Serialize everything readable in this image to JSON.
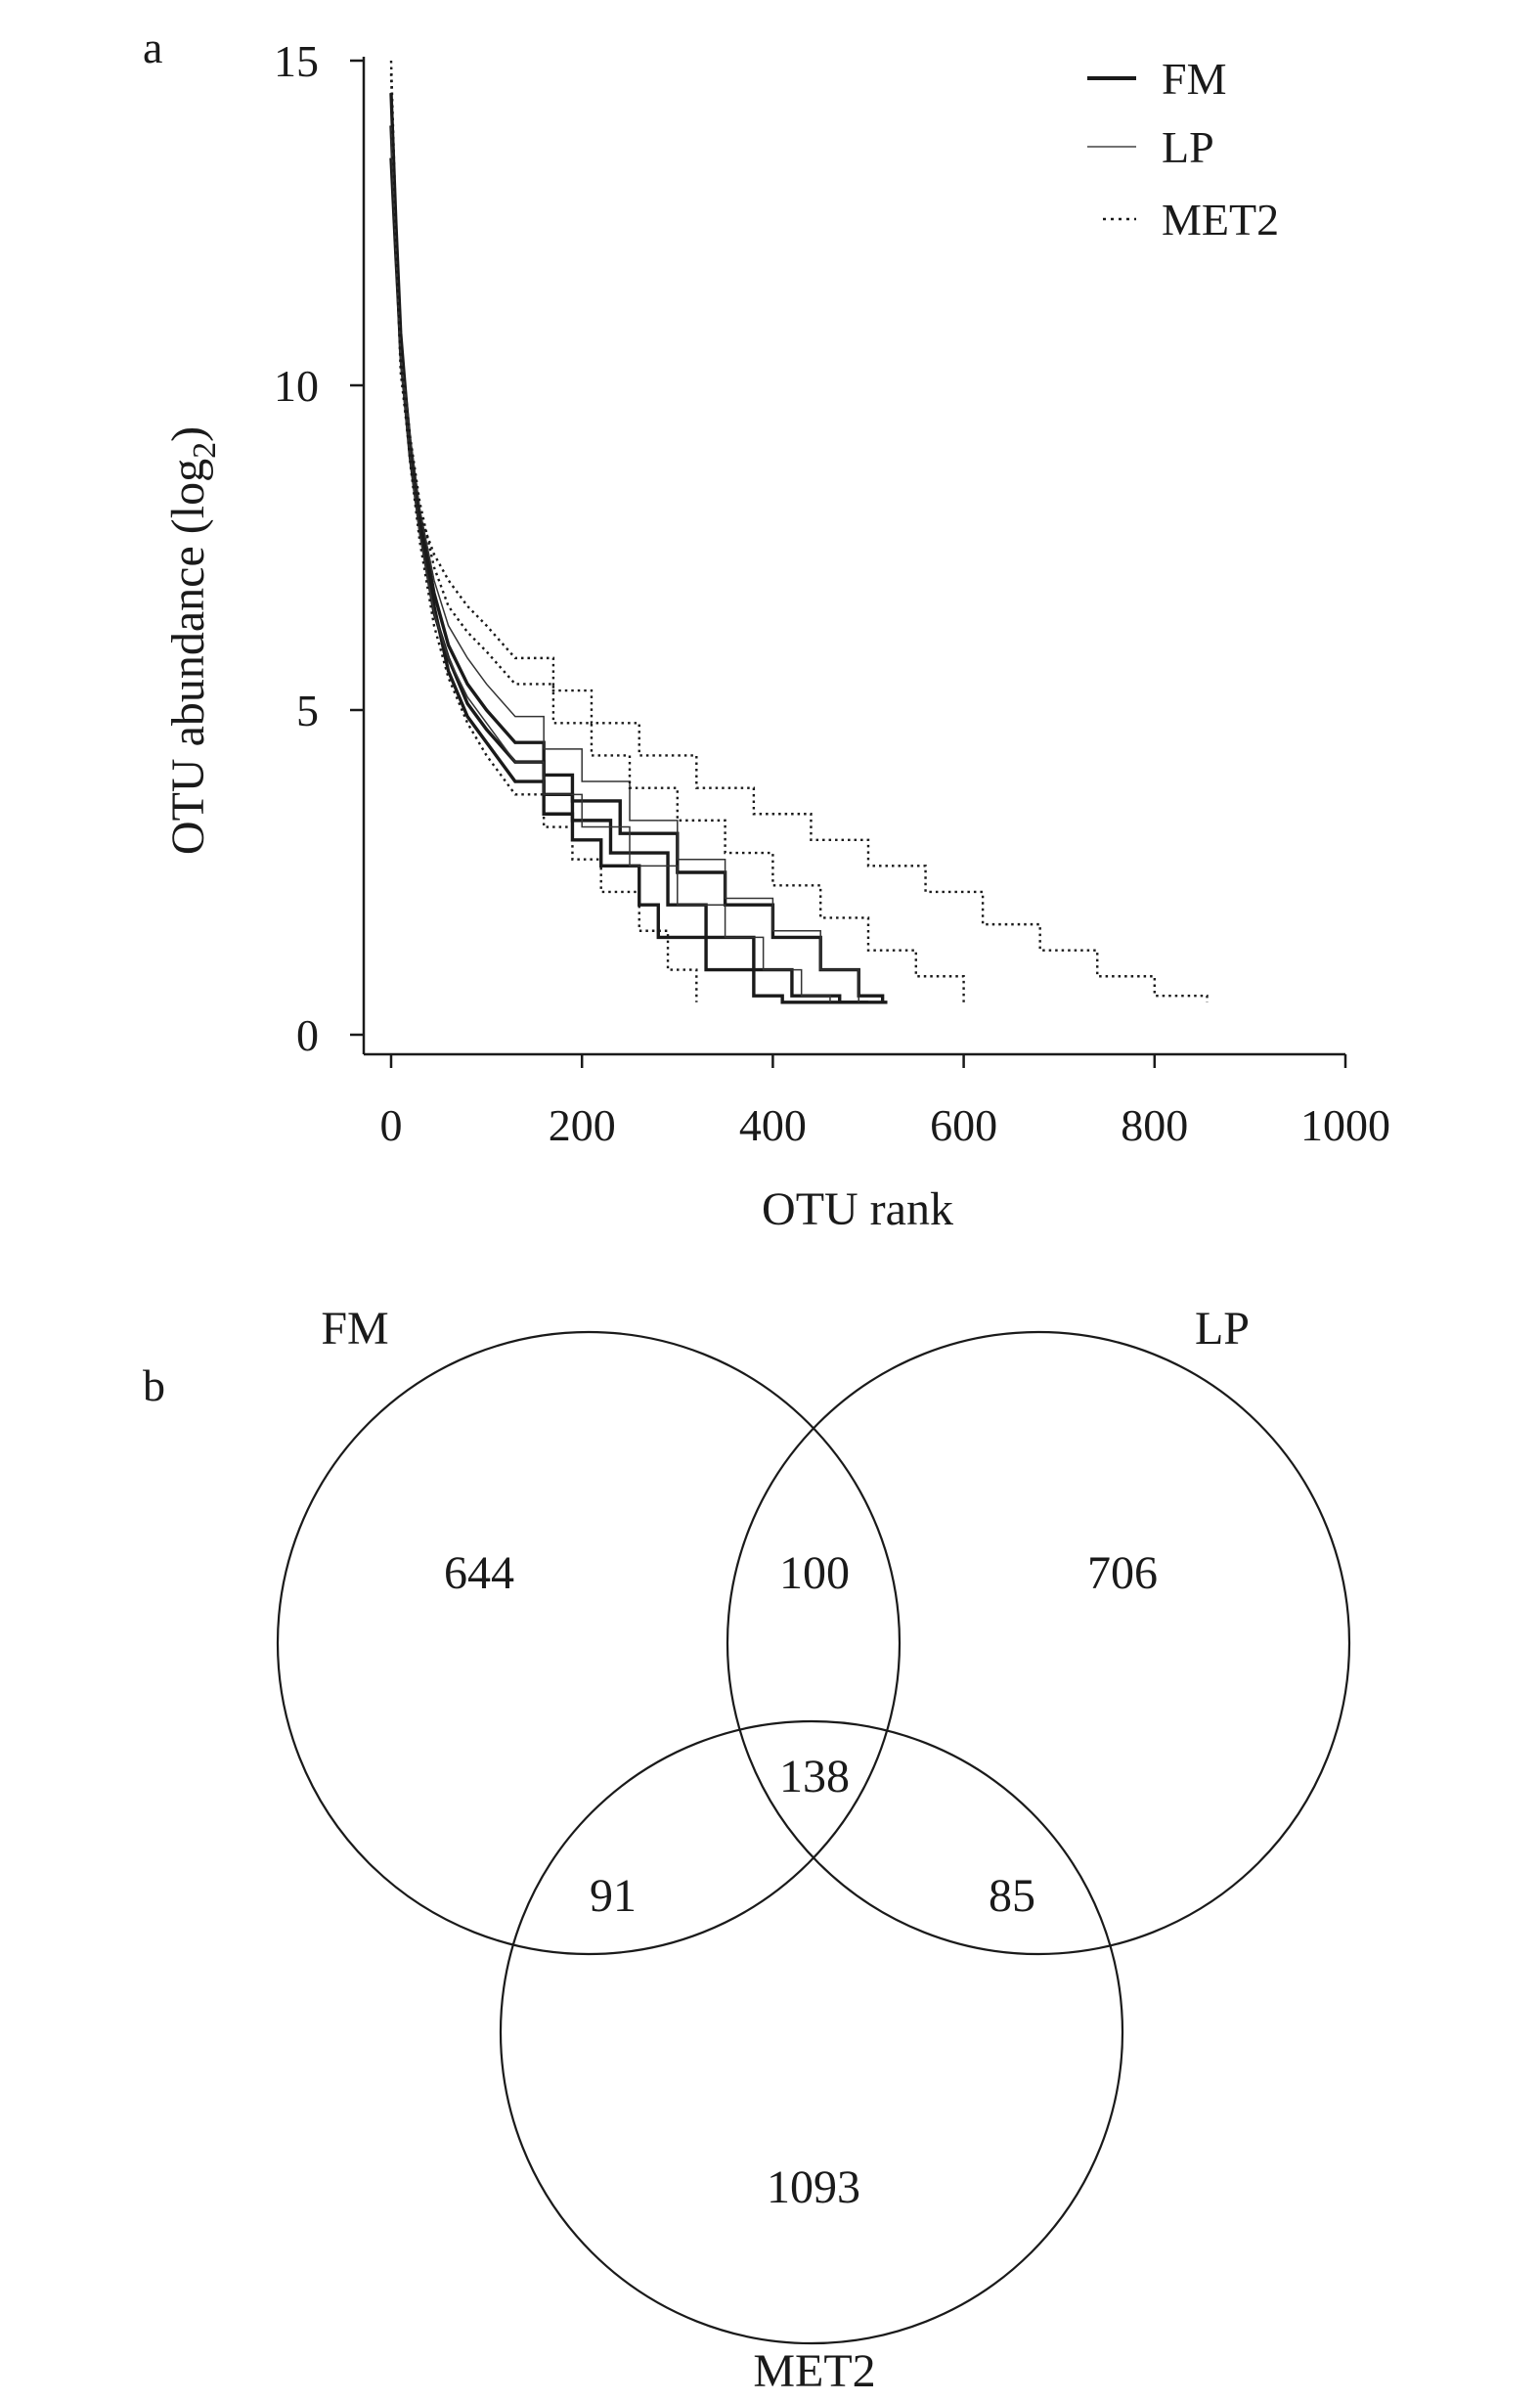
{
  "panels": {
    "a": "a",
    "b": "b"
  },
  "chart_data": [
    {
      "type": "line",
      "panel": "a",
      "xlabel": "OTU rank",
      "ylabel_main": "OTU abundance (log",
      "ylabel_sub": "2",
      "ylabel_end": ")",
      "xlim": [
        0,
        1000
      ],
      "ylim": [
        0,
        15
      ],
      "xticks": [
        0,
        200,
        400,
        600,
        800,
        1000
      ],
      "yticks": [
        0,
        5,
        10,
        15
      ],
      "grid": false,
      "legend_position": "top-right",
      "legend": [
        {
          "label": "FM",
          "style": "solid-thick"
        },
        {
          "label": "LP",
          "style": "solid-thin"
        },
        {
          "label": "MET2",
          "style": "dotted"
        }
      ],
      "series": [
        {
          "name": "FM",
          "style": "solid-thick",
          "x": [
            0,
            5,
            10,
            20,
            30,
            45,
            60,
            80,
            100,
            130,
            160,
            190,
            220,
            260,
            280,
            330,
            380,
            410,
            460,
            520
          ],
          "y": [
            14.5,
            12.5,
            10.8,
            9.0,
            7.9,
            6.6,
            5.6,
            4.9,
            4.5,
            3.9,
            3.4,
            3.0,
            2.6,
            2.0,
            1.5,
            1.0,
            0.6,
            0.5,
            0.5,
            0.5
          ]
        },
        {
          "name": "FM",
          "style": "solid-thick",
          "x": [
            0,
            5,
            10,
            20,
            30,
            45,
            60,
            80,
            100,
            130,
            160,
            190,
            230,
            290,
            330,
            380,
            420,
            470,
            500
          ],
          "y": [
            14.0,
            12.2,
            10.5,
            8.9,
            7.8,
            6.5,
            5.8,
            5.1,
            4.7,
            4.2,
            3.7,
            3.3,
            2.8,
            2.0,
            1.5,
            1.0,
            0.6,
            0.5,
            0.5
          ]
        },
        {
          "name": "FM",
          "style": "solid-thick",
          "x": [
            0,
            5,
            10,
            20,
            30,
            45,
            60,
            80,
            100,
            130,
            160,
            190,
            240,
            300,
            350,
            400,
            450,
            490,
            515
          ],
          "y": [
            13.5,
            12.0,
            10.6,
            9.1,
            8.0,
            6.8,
            6.0,
            5.4,
            5.0,
            4.5,
            4.0,
            3.6,
            3.1,
            2.5,
            2.0,
            1.5,
            1.0,
            0.6,
            0.5
          ]
        },
        {
          "name": "LP",
          "style": "solid-thin",
          "x": [
            0,
            5,
            10,
            20,
            30,
            45,
            60,
            80,
            100,
            130,
            160,
            200,
            250,
            300,
            350,
            390,
            430,
            460
          ],
          "y": [
            14.0,
            12.0,
            10.3,
            8.9,
            7.7,
            6.5,
            5.8,
            5.2,
            4.8,
            4.2,
            3.7,
            3.2,
            2.6,
            2.0,
            1.5,
            1.0,
            0.6,
            0.5
          ]
        },
        {
          "name": "LP",
          "style": "solid-thin",
          "x": [
            0,
            5,
            10,
            20,
            30,
            45,
            60,
            80,
            100,
            130,
            160,
            200,
            250,
            300,
            350,
            400,
            450,
            490
          ],
          "y": [
            13.8,
            12.1,
            10.5,
            9.2,
            8.1,
            7.0,
            6.3,
            5.8,
            5.4,
            4.9,
            4.4,
            3.9,
            3.3,
            2.7,
            2.1,
            1.6,
            1.0,
            0.5
          ]
        },
        {
          "name": "MET2",
          "style": "dotted",
          "x": [
            0,
            5,
            10,
            20,
            30,
            45,
            60,
            80,
            100,
            130,
            160,
            190,
            220,
            260,
            290,
            320
          ],
          "y": [
            15.0,
            12.5,
            10.4,
            8.8,
            7.6,
            6.3,
            5.5,
            4.8,
            4.3,
            3.7,
            3.2,
            2.7,
            2.2,
            1.6,
            1.0,
            0.5
          ]
        },
        {
          "name": "MET2",
          "style": "dotted",
          "x": [
            0,
            5,
            10,
            20,
            30,
            45,
            60,
            80,
            100,
            130,
            170,
            210,
            250,
            300,
            350,
            400,
            450,
            500,
            550,
            600
          ],
          "y": [
            14.5,
            12.3,
            10.6,
            9.2,
            8.2,
            7.2,
            6.6,
            6.2,
            5.9,
            5.4,
            4.8,
            4.3,
            3.8,
            3.3,
            2.8,
            2.3,
            1.8,
            1.3,
            0.9,
            0.5
          ]
        },
        {
          "name": "MET2",
          "style": "dotted",
          "x": [
            0,
            5,
            10,
            20,
            30,
            45,
            60,
            80,
            100,
            130,
            170,
            210,
            260,
            320,
            380,
            440,
            500,
            560,
            620,
            680,
            740,
            800,
            855
          ],
          "y": [
            14.8,
            12.3,
            10.2,
            8.9,
            8.0,
            7.4,
            7.0,
            6.6,
            6.3,
            5.8,
            5.3,
            4.8,
            4.3,
            3.8,
            3.4,
            3.0,
            2.6,
            2.2,
            1.7,
            1.3,
            0.9,
            0.6,
            0.5
          ]
        }
      ]
    },
    {
      "type": "venn",
      "panel": "b",
      "sets": [
        {
          "label": "FM"
        },
        {
          "label": "LP"
        },
        {
          "label": "MET2"
        }
      ],
      "regions": [
        {
          "sets": [
            "FM"
          ],
          "value": "644"
        },
        {
          "sets": [
            "LP"
          ],
          "value": "706"
        },
        {
          "sets": [
            "MET2"
          ],
          "value": "1093"
        },
        {
          "sets": [
            "FM",
            "LP"
          ],
          "value": "100"
        },
        {
          "sets": [
            "FM",
            "MET2"
          ],
          "value": "91"
        },
        {
          "sets": [
            "LP",
            "MET2"
          ],
          "value": "85"
        },
        {
          "sets": [
            "FM",
            "LP",
            "MET2"
          ],
          "value": "138"
        }
      ]
    }
  ]
}
